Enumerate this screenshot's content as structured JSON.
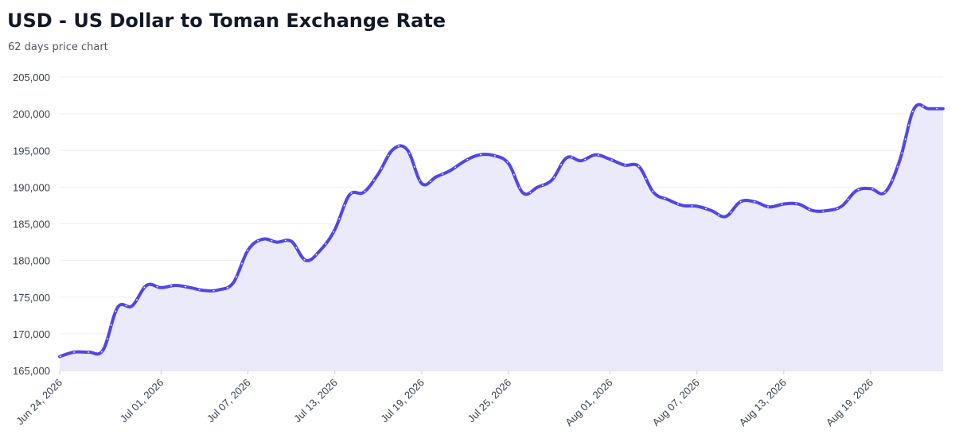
{
  "header": {
    "title": "USD - US Dollar to Toman Exchange Rate",
    "subtitle": "62 days price chart"
  },
  "colors": {
    "line": "#5046e5",
    "fill": "#ebeafb",
    "grid": "#eeeeee",
    "axis": "#cccccc",
    "dash": "#ffffff"
  },
  "chart_data": {
    "type": "area",
    "title": "USD - US Dollar to Toman Exchange Rate",
    "subtitle": "62 days price chart",
    "xlabel": "",
    "ylabel": "",
    "ylim": [
      165000,
      205000
    ],
    "y_ticks": [
      165000,
      170000,
      175000,
      180000,
      185000,
      190000,
      195000,
      200000,
      205000
    ],
    "y_tick_labels": [
      "165,000",
      "170,000",
      "175,000",
      "180,000",
      "185,000",
      "190,000",
      "195,000",
      "200,000",
      "205,000"
    ],
    "x_tick_labels": [
      "Jun 24, 2026",
      "Jul 01, 2026",
      "Jul 07, 2026",
      "Jul 13, 2026",
      "Jul 19, 2026",
      "Jul 25, 2026",
      "Aug 01, 2026",
      "Aug 07, 2026",
      "Aug 13, 2026",
      "Aug 19, 2026"
    ],
    "x_tick_dates": [
      "2026-06-24",
      "2026-07-01",
      "2026-07-07",
      "2026-07-13",
      "2026-07-19",
      "2026-07-25",
      "2026-08-01",
      "2026-08-07",
      "2026-08-13",
      "2026-08-19"
    ],
    "grid": true,
    "legend": "none",
    "series": [
      {
        "x": [
          "2026-06-24",
          "2026-06-25",
          "2026-06-26",
          "2026-06-27",
          "2026-06-28",
          "2026-06-29",
          "2026-06-30",
          "2026-07-01",
          "2026-07-02",
          "2026-07-03",
          "2026-07-04",
          "2026-07-05",
          "2026-07-06",
          "2026-07-07",
          "2026-07-08",
          "2026-07-09",
          "2026-07-10",
          "2026-07-11",
          "2026-07-12",
          "2026-07-13",
          "2026-07-14",
          "2026-07-15",
          "2026-07-16",
          "2026-07-17",
          "2026-07-18",
          "2026-07-19",
          "2026-07-20",
          "2026-07-21",
          "2026-07-22",
          "2026-07-23",
          "2026-07-24",
          "2026-07-25",
          "2026-07-26",
          "2026-07-27",
          "2026-07-28",
          "2026-07-29",
          "2026-07-30",
          "2026-07-31",
          "2026-08-01",
          "2026-08-02",
          "2026-08-03",
          "2026-08-04",
          "2026-08-05",
          "2026-08-06",
          "2026-08-07",
          "2026-08-08",
          "2026-08-09",
          "2026-08-10",
          "2026-08-11",
          "2026-08-12",
          "2026-08-13",
          "2026-08-14",
          "2026-08-15",
          "2026-08-16",
          "2026-08-17",
          "2026-08-18",
          "2026-08-19",
          "2026-08-20",
          "2026-08-21",
          "2026-08-22",
          "2026-08-23",
          "2026-08-24"
        ],
        "values": [
          166900,
          167500,
          167500,
          167800,
          173600,
          173800,
          176600,
          176300,
          176600,
          176300,
          175900,
          176000,
          177000,
          181400,
          182900,
          182500,
          182600,
          180000,
          181400,
          184200,
          188900,
          189300,
          191800,
          195100,
          195100,
          190500,
          191400,
          192300,
          193600,
          194400,
          194300,
          193200,
          189200,
          190000,
          191000,
          194000,
          193600,
          194400,
          193800,
          193000,
          192800,
          189300,
          188300,
          187500,
          187400,
          186800,
          186000,
          188000,
          188000,
          187300,
          187700,
          187700,
          186800,
          186800,
          187400,
          189500,
          189800,
          189300,
          193600,
          200700,
          200700,
          200700
        ]
      }
    ]
  }
}
